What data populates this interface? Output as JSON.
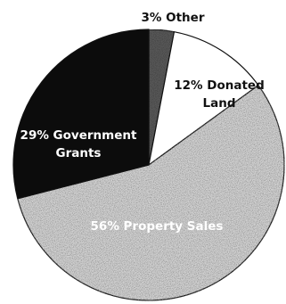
{
  "chart_data": {
    "type": "pie",
    "slices": [
      {
        "label_value": "3%",
        "label_name": "Other",
        "value": 3,
        "color": "#5a5a5a",
        "pattern": "dark-stipple",
        "text_color": "#111111"
      },
      {
        "label_value": "12%",
        "label_name": "Donated Land",
        "value": 12,
        "color": "#ffffff",
        "pattern": "none",
        "text_color": "#111111"
      },
      {
        "label_value": "56%",
        "label_name": "Property Sales",
        "value": 56,
        "color": "#d2d2d2",
        "pattern": "light-stipple",
        "text_color": "#ffffff"
      },
      {
        "label_value": "29%",
        "label_name": "Government Grants",
        "value": 29,
        "color": "#0c0c0c",
        "pattern": "none",
        "text_color": "#ffffff"
      }
    ],
    "start_position": "12 o'clock",
    "direction": "clockwise",
    "title": "",
    "legend": "none"
  }
}
